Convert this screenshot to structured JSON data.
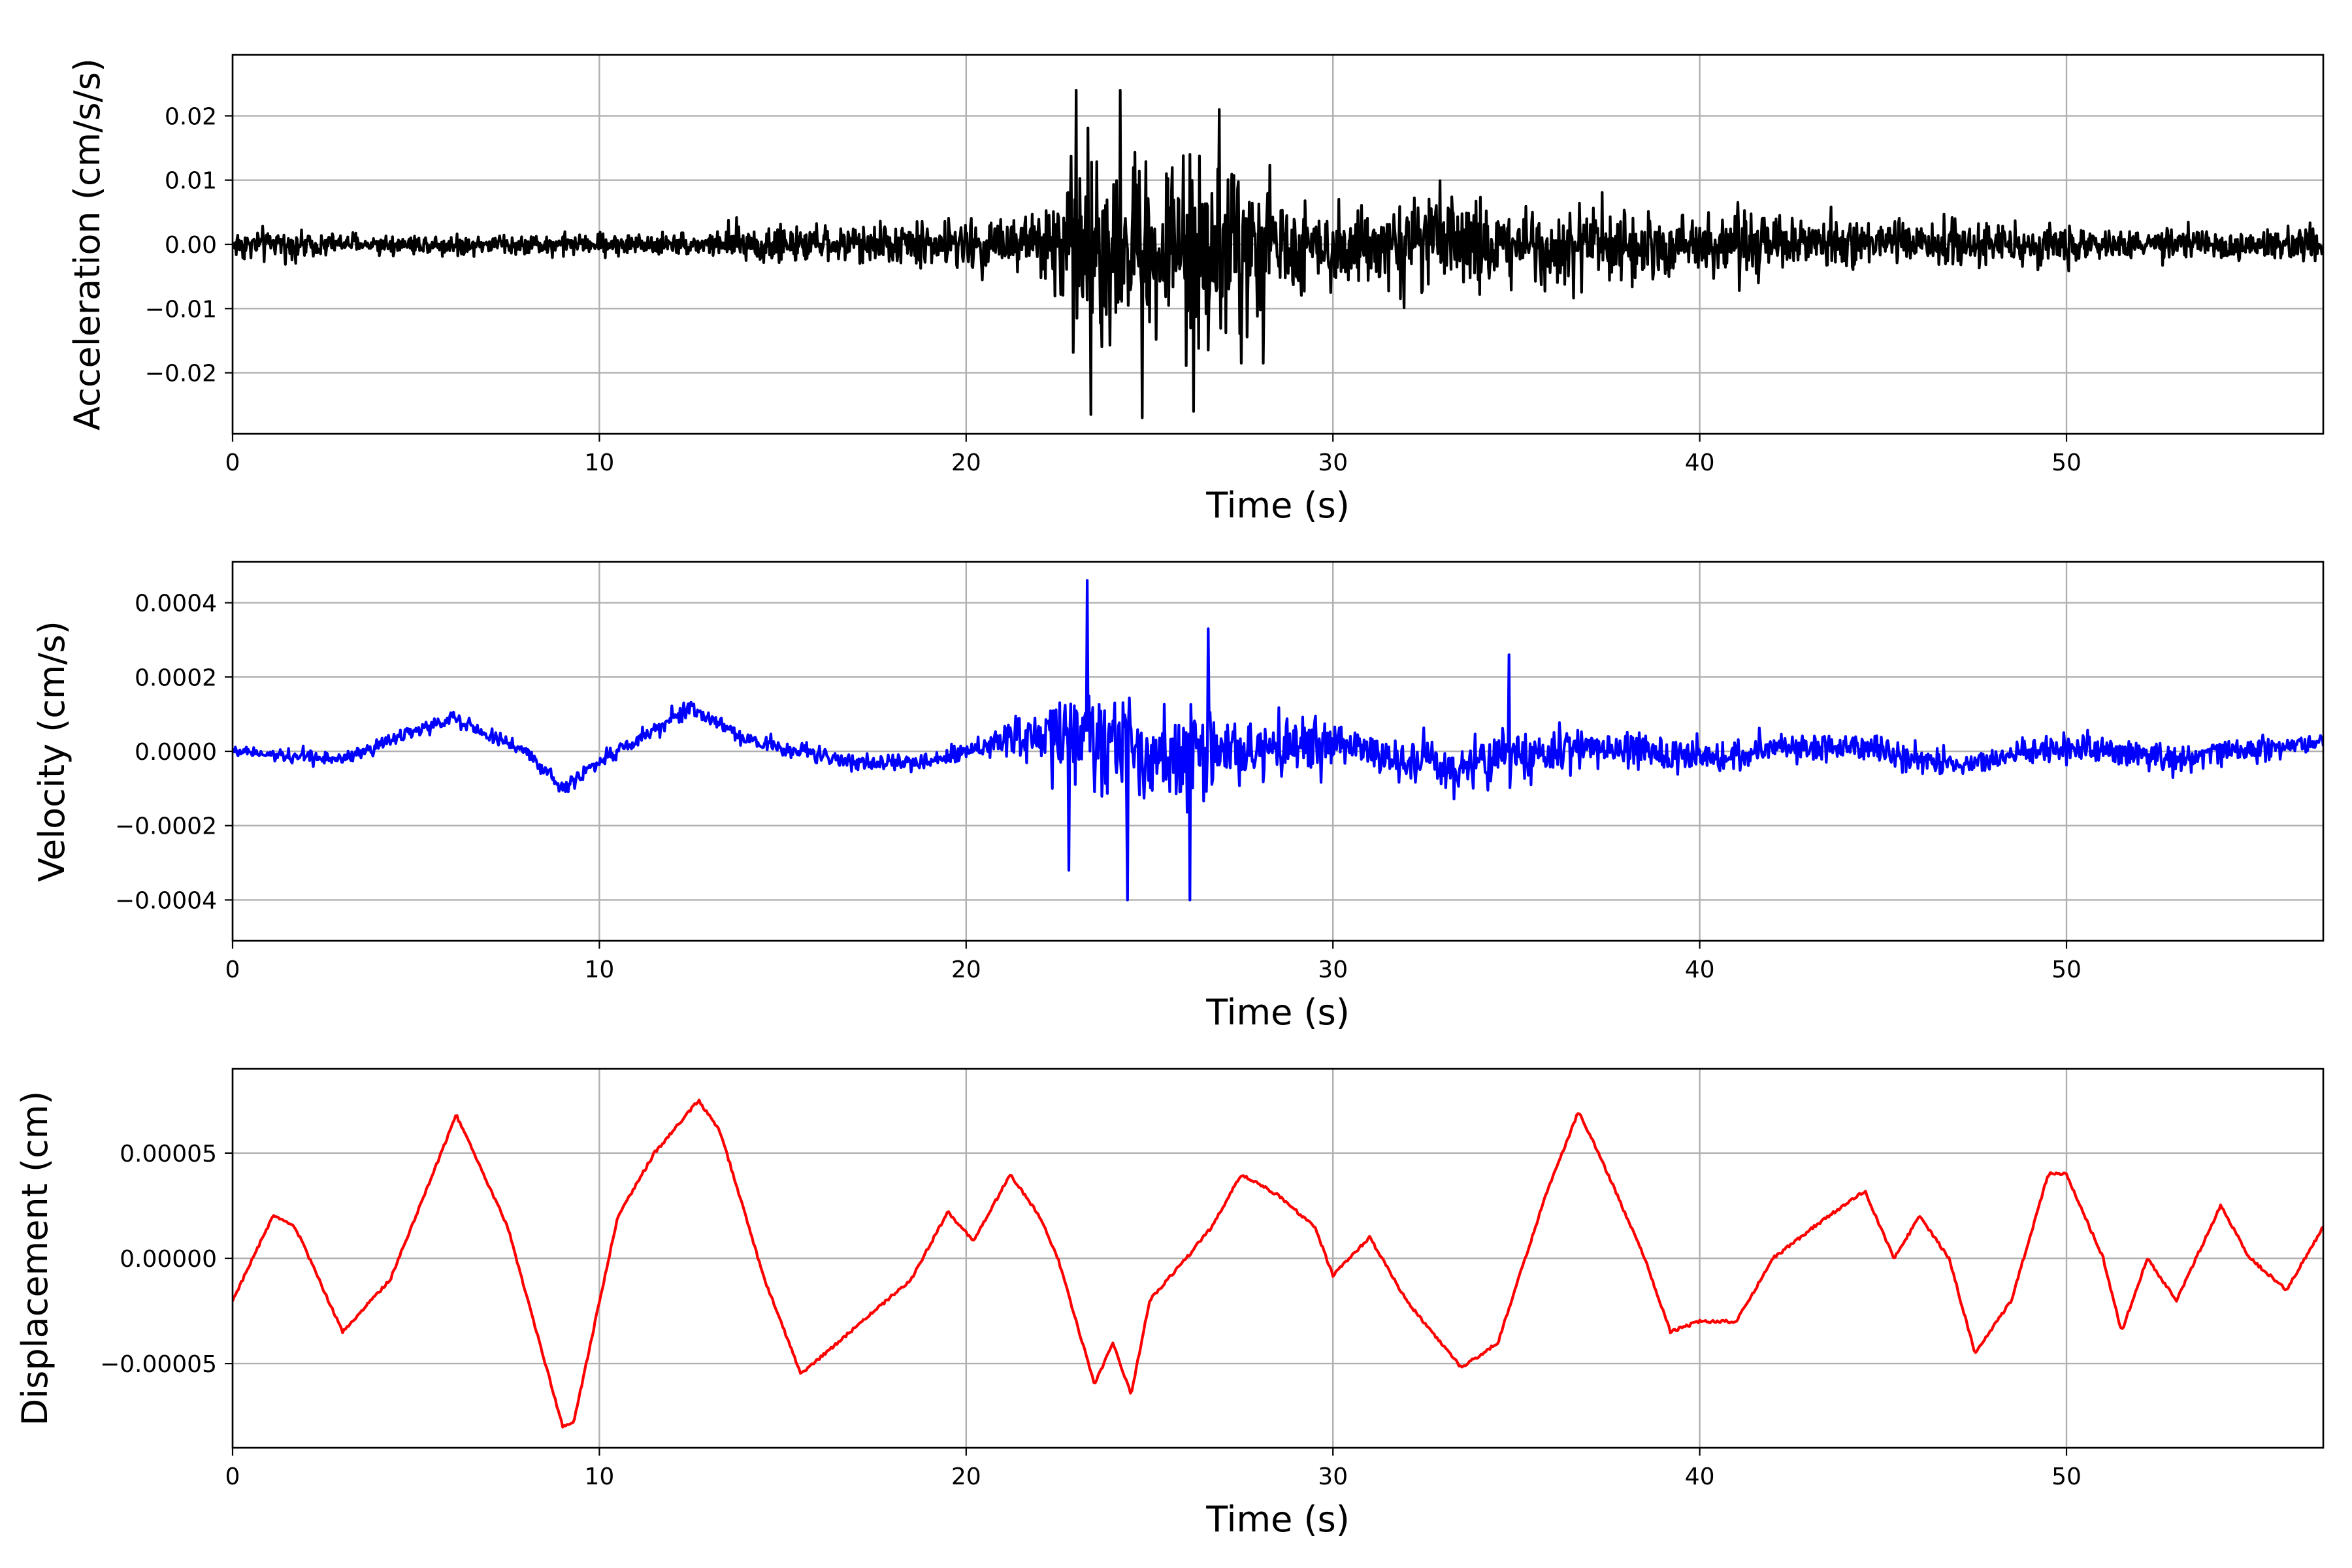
{
  "chart_data": [
    {
      "type": "line",
      "title": "",
      "xlabel": "Time (s)",
      "ylabel": "Acceleration (cm/s/s)",
      "xlim": [
        0,
        57
      ],
      "ylim": [
        -0.0295,
        0.0295
      ],
      "grid": true,
      "xticks": [
        0,
        10,
        20,
        30,
        40,
        50
      ],
      "xtick_labels": [
        "0",
        "10",
        "20",
        "30",
        "40",
        "50"
      ],
      "yticks": [
        -0.02,
        -0.01,
        0.0,
        0.01,
        0.02
      ],
      "ytick_labels": [
        "−0.02",
        "−0.01",
        "0.00",
        "0.01",
        "0.02"
      ],
      "series": [
        {
          "color": "#000000",
          "envelope": [
            [
              0,
              0.004
            ],
            [
              4,
              0.0025
            ],
            [
              13,
              0.003
            ],
            [
              14,
              0.006
            ],
            [
              16,
              0.004
            ],
            [
              19,
              0.006
            ],
            [
              21,
              0.007
            ],
            [
              22,
              0.012
            ],
            [
              23,
              0.022
            ],
            [
              24.5,
              0.025
            ],
            [
              26.5,
              0.023
            ],
            [
              28,
              0.018
            ],
            [
              29.5,
              0.009
            ],
            [
              31.5,
              0.011
            ],
            [
              34.5,
              0.012
            ],
            [
              38,
              0.009
            ],
            [
              42,
              0.007
            ],
            [
              46,
              0.006
            ],
            [
              48.5,
              0.006
            ],
            [
              51,
              0.0035
            ],
            [
              57,
              0.0045
            ]
          ],
          "peaks": [
            [
              23.0,
              0.024
            ],
            [
              23.4,
              -0.0265
            ],
            [
              24.2,
              0.024
            ],
            [
              24.8,
              -0.027
            ],
            [
              26.2,
              -0.026
            ],
            [
              26.9,
              0.021
            ],
            [
              27.5,
              -0.0185
            ],
            [
              28.1,
              -0.0185
            ]
          ]
        }
      ]
    },
    {
      "type": "line",
      "title": "",
      "xlabel": "Time (s)",
      "ylabel": "Velocity (cm/s)",
      "xlim": [
        0,
        57
      ],
      "ylim": [
        -0.00051,
        0.00051
      ],
      "grid": true,
      "xticks": [
        0,
        10,
        20,
        30,
        40,
        50
      ],
      "xtick_labels": [
        "0",
        "10",
        "20",
        "30",
        "40",
        "50"
      ],
      "yticks": [
        -0.0004,
        -0.0002,
        0.0,
        0.0002,
        0.0004
      ],
      "ytick_labels": [
        "−0.0004",
        "−0.0002",
        "0.0000",
        "0.0002",
        "0.0004"
      ],
      "series": [
        {
          "color": "#0000ff",
          "baseline": [
            [
              0,
              0.0
            ],
            [
              3,
              -2e-05
            ],
            [
              6,
              9e-05
            ],
            [
              8,
              0.0
            ],
            [
              9,
              -0.0001
            ],
            [
              10,
              -3e-05
            ],
            [
              12.5,
              0.00012
            ],
            [
              14,
              3e-05
            ],
            [
              17,
              -3e-05
            ],
            [
              19,
              -3e-05
            ],
            [
              20,
              0.0
            ],
            [
              22,
              5e-05
            ],
            [
              25,
              0.0
            ],
            [
              30,
              2e-05
            ],
            [
              33,
              -4e-05
            ],
            [
              37,
              2e-05
            ],
            [
              40,
              -2e-05
            ],
            [
              44,
              2e-05
            ],
            [
              47,
              -4e-05
            ],
            [
              50,
              1e-05
            ],
            [
              53,
              -2e-05
            ],
            [
              57,
              3e-05
            ]
          ],
          "envelope": [
            [
              0,
              3e-05
            ],
            [
              20,
              4e-05
            ],
            [
              22,
              0.00013
            ],
            [
              23.5,
              0.00026
            ],
            [
              26,
              0.00022
            ],
            [
              28,
              0.00015
            ],
            [
              30,
              0.00011
            ],
            [
              35,
              0.00011
            ],
            [
              40,
              8e-05
            ],
            [
              57,
              5e-05
            ]
          ],
          "peaks": [
            [
              23.3,
              0.00046
            ],
            [
              24.4,
              -0.0004
            ],
            [
              26.1,
              -0.0004
            ],
            [
              26.6,
              0.00033
            ],
            [
              22.8,
              -0.00032
            ],
            [
              34.8,
              0.00026
            ]
          ]
        }
      ]
    },
    {
      "type": "line",
      "title": "",
      "xlabel": "Time (s)",
      "ylabel": "Displacement (cm)",
      "xlim": [
        0,
        57
      ],
      "ylim": [
        -9e-05,
        9e-05
      ],
      "grid": true,
      "xticks": [
        0,
        10,
        20,
        30,
        40,
        50
      ],
      "xtick_labels": [
        "0",
        "10",
        "20",
        "30",
        "40",
        "50"
      ],
      "yticks": [
        -5e-05,
        0.0,
        5e-05
      ],
      "ytick_labels": [
        "−0.00005",
        "0.00000",
        "0.00005"
      ],
      "series": [
        {
          "color": "#ff0000",
          "x": [
            0,
            1.1,
            1.7,
            3.0,
            4.3,
            6.1,
            7.5,
            9.0,
            9.3,
            10.5,
            11.5,
            12.7,
            13.3,
            14.5,
            15.5,
            16.5,
            18.5,
            19.5,
            20.2,
            21.2,
            22.0,
            22.5,
            23.0,
            23.5,
            24.0,
            24.5,
            25.0,
            26.0,
            26.7,
            27.5,
            28.5,
            29.5,
            30.0,
            31.0,
            32.0,
            33.5,
            34.5,
            35.8,
            36.7,
            37.5,
            38.5,
            39.2,
            40.0,
            41.0,
            42.0,
            43.5,
            44.5,
            45.3,
            46.0,
            46.8,
            47.5,
            48.5,
            49.5,
            50.0,
            51.0,
            51.5,
            52.2,
            53.0,
            54.2,
            55.0,
            56.0,
            57.0
          ],
          "y": [
            -2e-05,
            2e-05,
            1.5e-05,
            -3.5e-05,
            -1e-05,
            6.8e-05,
            1.5e-05,
            -8e-05,
            -7.8e-05,
            2e-05,
            5e-05,
            7.5e-05,
            6e-05,
            -1e-05,
            -5.5e-05,
            -4e-05,
            -1e-05,
            2.2e-05,
            8e-06,
            4e-05,
            2e-05,
            0.0,
            -3e-05,
            -6e-05,
            -4e-05,
            -6.5e-05,
            -2e-05,
            0.0,
            1.5e-05,
            4e-05,
            3e-05,
            1.5e-05,
            -8e-06,
            1e-05,
            -2e-05,
            -5.2e-05,
            -4e-05,
            3e-05,
            7e-05,
            4e-05,
            0.0,
            -3.5e-05,
            -3e-05,
            -3e-05,
            0.0,
            2e-05,
            3.2e-05,
            0.0,
            2e-05,
            0.0,
            -4.5e-05,
            -2e-05,
            4e-05,
            4e-05,
            0.0,
            -3.5e-05,
            0.0,
            -2e-05,
            2.5e-05,
            0.0,
            -1.5e-05,
            1.5e-05
          ]
        }
      ]
    }
  ]
}
